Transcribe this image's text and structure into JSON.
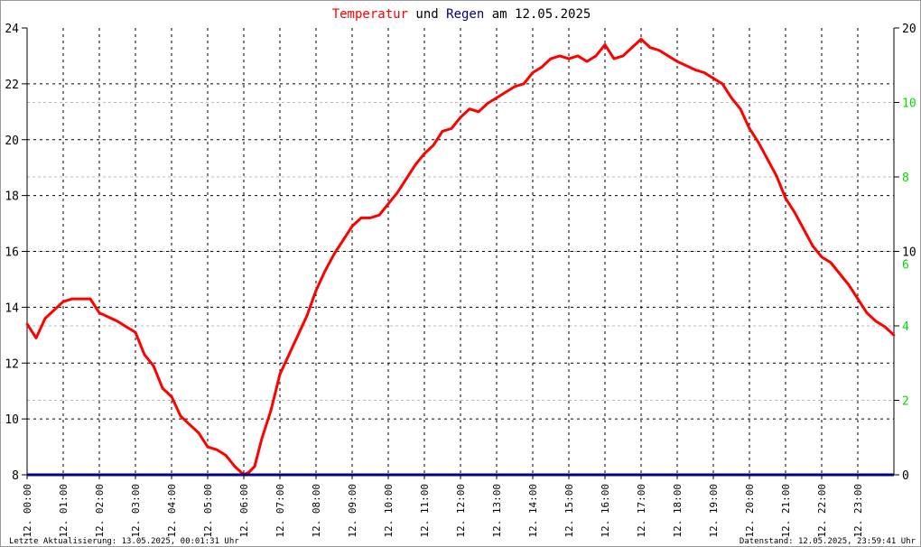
{
  "chart_data": {
    "type": "line",
    "title": {
      "part1": "Temperatur",
      "part2": " und ",
      "part3": "Regen",
      "part4": " am 12.05.2025"
    },
    "colors": {
      "temperature": "#ff0000",
      "rain": "#000080",
      "rain_axis": "#00dd00",
      "title_temp": "#ff0000",
      "title_rain": "#000080"
    },
    "x_tick_labels": [
      "12. 00:00",
      "12. 01:00",
      "12. 02:00",
      "12. 03:00",
      "12. 04:00",
      "12. 05:00",
      "12. 06:00",
      "12. 07:00",
      "12. 08:00",
      "12. 09:00",
      "12. 10:00",
      "12. 11:00",
      "12. 12:00",
      "12. 13:00",
      "12. 14:00",
      "12. 15:00",
      "12. 16:00",
      "12. 17:00",
      "12. 18:00",
      "12. 19:00",
      "12. 20:00",
      "12. 21:00",
      "12. 22:00",
      "12. 23:00"
    ],
    "y_left": {
      "ylim": [
        8,
        24
      ],
      "ticks": [
        "8",
        "10",
        "12",
        "14",
        "16",
        "18",
        "20",
        "22",
        "24"
      ]
    },
    "y_right_black": {
      "ylim": [
        0,
        20
      ],
      "ticks": [
        "0",
        "10",
        "20"
      ]
    },
    "y_right_green": {
      "ticks": [
        "2",
        "4",
        "6",
        "8",
        "10"
      ]
    },
    "grid": true,
    "series": [
      {
        "x_hours": [
          0,
          0.25,
          0.5,
          1,
          1.25,
          1.75,
          2,
          2.5,
          3,
          3.25,
          3.5,
          3.75,
          4,
          4.25,
          4.5,
          4.75,
          5,
          5.25,
          5.5,
          5.75,
          6,
          6.15,
          6.3,
          6.5,
          6.75,
          7,
          7.25,
          7.5,
          7.75,
          8,
          8.25,
          8.5,
          8.75,
          9,
          9.25,
          9.5,
          9.75,
          10,
          10.25,
          10.5,
          10.75,
          11,
          11.25,
          11.5,
          11.75,
          12,
          12.25,
          12.5,
          12.75,
          13,
          13.25,
          13.5,
          13.75,
          14,
          14.25,
          14.5,
          14.75,
          15,
          15.25,
          15.5,
          15.75,
          16,
          16.25,
          16.5,
          16.75,
          17,
          17.25,
          17.5,
          17.75,
          18,
          18.5,
          18.75,
          19,
          19.25,
          19.5,
          19.75,
          20,
          20.25,
          20.5,
          20.75,
          21,
          21.25,
          21.5,
          21.75,
          22,
          22.25,
          22.5,
          22.75,
          23,
          23.25,
          23.5,
          23.75,
          24
        ],
        "temperature": [
          13.4,
          12.9,
          13.6,
          14.2,
          14.3,
          14.3,
          13.8,
          13.5,
          13.1,
          12.3,
          11.9,
          11.1,
          10.8,
          10.1,
          9.8,
          9.5,
          9.0,
          8.9,
          8.7,
          8.3,
          8.0,
          8.1,
          8.3,
          9.3,
          10.3,
          11.6,
          12.3,
          13.0,
          13.7,
          14.6,
          15.3,
          15.9,
          16.4,
          16.9,
          17.2,
          17.2,
          17.3,
          17.7,
          18.1,
          18.6,
          19.1,
          19.5,
          19.8,
          20.3,
          20.4,
          20.8,
          21.1,
          21.0,
          21.3,
          21.5,
          21.7,
          21.9,
          22.0,
          22.4,
          22.6,
          22.9,
          23.0,
          22.9,
          23.0,
          22.8,
          23.0,
          23.4,
          22.9,
          23.0,
          23.3,
          23.6,
          23.3,
          23.2,
          23.0,
          22.8,
          22.5,
          22.4,
          22.2,
          22.0,
          21.5,
          21.1,
          20.4,
          19.9,
          19.3,
          18.7,
          17.9,
          17.4,
          16.8,
          16.2,
          15.8,
          15.6,
          15.2,
          14.8,
          14.3,
          13.8,
          13.5,
          13.3,
          13.0
        ],
        "rain": 0
      }
    ]
  },
  "footer": {
    "left": "Letzte Aktualisierung: 13.05.2025, 00:01:31 Uhr",
    "right": "Datenstand: 12.05.2025, 23:59:41 Uhr"
  }
}
